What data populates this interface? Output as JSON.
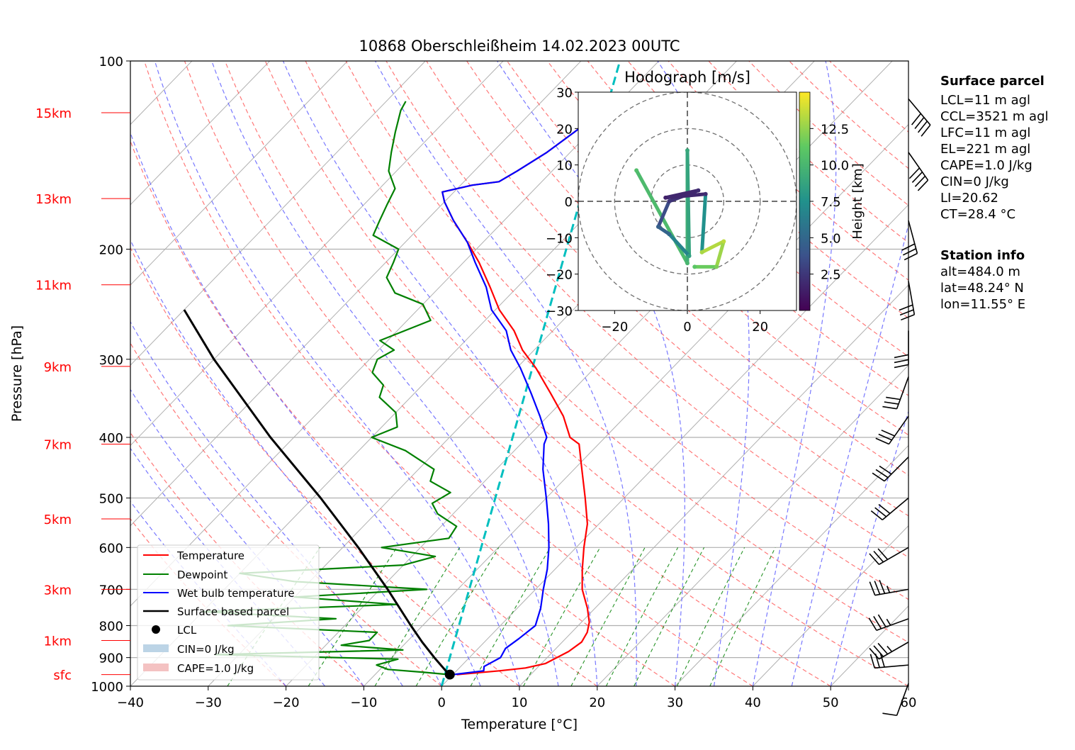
{
  "chart_data": [
    {
      "type": "line",
      "title": "10868 Oberschleißheim 14.02.2023 00UTC",
      "xlabel": "Temperature [°C]",
      "ylabel": "Pressure [hPa]",
      "xlim": [
        -40,
        60
      ],
      "ylim": [
        1000,
        100
      ],
      "y_scale": "log",
      "skew": true,
      "grid": true,
      "x_ticks": [
        "−40",
        "−30",
        "−20",
        "−10",
        "0",
        "10",
        "20",
        "30",
        "40",
        "50",
        "60"
      ],
      "y_ticks": [
        "100",
        "200",
        "300",
        "400",
        "500",
        "600",
        "700",
        "800",
        "900",
        "1000"
      ],
      "height_labels": [
        {
          "label": "sfc",
          "p": 958
        },
        {
          "label": "1km",
          "p": 845
        },
        {
          "label": "3km",
          "p": 700
        },
        {
          "label": "5km",
          "p": 540
        },
        {
          "label": "7km",
          "p": 410
        },
        {
          "label": "9km",
          "p": 308
        },
        {
          "label": "11km",
          "p": 228
        },
        {
          "label": "13km",
          "p": 166
        },
        {
          "label": "15km",
          "p": 121
        }
      ],
      "legend": {
        "placement": "lower-left",
        "entries": [
          {
            "label": "Temperature",
            "color": "#ff0000"
          },
          {
            "label": "Dewpoint",
            "color": "#008000"
          },
          {
            "label": "Wet bulb temperature",
            "color": "#0000ff"
          },
          {
            "label": "Surface based parcel",
            "color": "#000000"
          },
          {
            "label": "LCL",
            "color": "#000000"
          },
          {
            "label": "CIN=0 J/kg",
            "color": "#bcd4e6"
          },
          {
            "label": "CAPE=1.0 J/kg",
            "color": "#f4c2c2"
          }
        ]
      },
      "series": [
        {
          "name": "Temperature",
          "color": "#ff0000",
          "points": [
            {
              "p": 958,
              "t": 0.5
            },
            {
              "p": 945,
              "t": 5.5
            },
            {
              "p": 935,
              "t": 8.5
            },
            {
              "p": 920,
              "t": 10.5
            },
            {
              "p": 880,
              "t": 12.0
            },
            {
              "p": 850,
              "t": 12.5
            },
            {
              "p": 820,
              "t": 12.0
            },
            {
              "p": 790,
              "t": 11.0
            },
            {
              "p": 750,
              "t": 9.0
            },
            {
              "p": 700,
              "t": 6.0
            },
            {
              "p": 650,
              "t": 3.5
            },
            {
              "p": 600,
              "t": 1.0
            },
            {
              "p": 550,
              "t": -1.5
            },
            {
              "p": 500,
              "t": -5.0
            },
            {
              "p": 450,
              "t": -9.0
            },
            {
              "p": 410,
              "t": -12.5
            },
            {
              "p": 400,
              "t": -14.5
            },
            {
              "p": 370,
              "t": -18.0
            },
            {
              "p": 340,
              "t": -22.5
            },
            {
              "p": 310,
              "t": -27.5
            },
            {
              "p": 290,
              "t": -31.5
            },
            {
              "p": 270,
              "t": -35.0
            },
            {
              "p": 250,
              "t": -39.5
            },
            {
              "p": 230,
              "t": -43.5
            },
            {
              "p": 210,
              "t": -48.0
            },
            {
              "p": 195,
              "t": -52.0
            },
            {
              "p": 180,
              "t": -56.5
            },
            {
              "p": 168,
              "t": -60.0
            },
            {
              "p": 162,
              "t": -61.5
            },
            {
              "p": 158,
              "t": -58.5
            },
            {
              "p": 156,
              "t": -55.5
            },
            {
              "p": 150,
              "t": -54.5
            },
            {
              "p": 140,
              "t": -53.0
            },
            {
              "p": 130,
              "t": -52.0
            },
            {
              "p": 120,
              "t": -51.0
            },
            {
              "p": 116,
              "t": -50.5
            }
          ]
        },
        {
          "name": "Dewpoint",
          "color": "#008000",
          "points": [
            {
              "p": 958,
              "t": -0.5
            },
            {
              "p": 950,
              "t": -4.0
            },
            {
              "p": 940,
              "t": -9.0
            },
            {
              "p": 925,
              "t": -11.0
            },
            {
              "p": 905,
              "t": -9.0
            },
            {
              "p": 890,
              "t": -33.0
            },
            {
              "p": 875,
              "t": -9.5
            },
            {
              "p": 860,
              "t": -18.0
            },
            {
              "p": 845,
              "t": -15.0
            },
            {
              "p": 820,
              "t": -15.0
            },
            {
              "p": 800,
              "t": -35.0
            },
            {
              "p": 780,
              "t": -22.0
            },
            {
              "p": 760,
              "t": -40.0
            },
            {
              "p": 740,
              "t": -16.0
            },
            {
              "p": 720,
              "t": -30.0
            },
            {
              "p": 700,
              "t": -14.0
            },
            {
              "p": 680,
              "t": -32.0
            },
            {
              "p": 660,
              "t": -40.0
            },
            {
              "p": 640,
              "t": -20.0
            },
            {
              "p": 620,
              "t": -17.0
            },
            {
              "p": 600,
              "t": -25.0
            },
            {
              "p": 580,
              "t": -17.5
            },
            {
              "p": 555,
              "t": -18.0
            },
            {
              "p": 530,
              "t": -22.0
            },
            {
              "p": 510,
              "t": -24.0
            },
            {
              "p": 490,
              "t": -23.0
            },
            {
              "p": 470,
              "t": -27.0
            },
            {
              "p": 450,
              "t": -28.0
            },
            {
              "p": 420,
              "t": -34.0
            },
            {
              "p": 400,
              "t": -40.0
            },
            {
              "p": 385,
              "t": -38.0
            },
            {
              "p": 365,
              "t": -40.0
            },
            {
              "p": 345,
              "t": -44.0
            },
            {
              "p": 330,
              "t": -45.0
            },
            {
              "p": 315,
              "t": -48.0
            },
            {
              "p": 300,
              "t": -49.0
            },
            {
              "p": 290,
              "t": -48.0
            },
            {
              "p": 280,
              "t": -51.0
            },
            {
              "p": 260,
              "t": -47.0
            },
            {
              "p": 245,
              "t": -50.0
            },
            {
              "p": 235,
              "t": -55.0
            },
            {
              "p": 222,
              "t": -58.0
            },
            {
              "p": 210,
              "t": -59.0
            },
            {
              "p": 200,
              "t": -60.0
            },
            {
              "p": 190,
              "t": -65.0
            },
            {
              "p": 180,
              "t": -66.0
            },
            {
              "p": 170,
              "t": -67.0
            },
            {
              "p": 160,
              "t": -68.0
            },
            {
              "p": 150,
              "t": -71.0
            },
            {
              "p": 140,
              "t": -73.0
            },
            {
              "p": 130,
              "t": -75.0
            },
            {
              "p": 120,
              "t": -77.0
            },
            {
              "p": 116,
              "t": -77.5
            }
          ]
        },
        {
          "name": "Wet bulb temperature",
          "color": "#0000ff",
          "points": [
            {
              "p": 958,
              "t": 0.0
            },
            {
              "p": 945,
              "t": 3.5
            },
            {
              "p": 930,
              "t": 3.0
            },
            {
              "p": 900,
              "t": 4.0
            },
            {
              "p": 870,
              "t": 3.5
            },
            {
              "p": 840,
              "t": 4.0
            },
            {
              "p": 800,
              "t": 4.5
            },
            {
              "p": 750,
              "t": 3.0
            },
            {
              "p": 700,
              "t": 1.0
            },
            {
              "p": 650,
              "t": -1.0
            },
            {
              "p": 600,
              "t": -3.5
            },
            {
              "p": 550,
              "t": -6.5
            },
            {
              "p": 500,
              "t": -10.0
            },
            {
              "p": 450,
              "t": -14.0
            },
            {
              "p": 410,
              "t": -17.0
            },
            {
              "p": 400,
              "t": -17.5
            },
            {
              "p": 370,
              "t": -21.0
            },
            {
              "p": 340,
              "t": -25.0
            },
            {
              "p": 310,
              "t": -29.5
            },
            {
              "p": 290,
              "t": -33.0
            },
            {
              "p": 270,
              "t": -36.0
            },
            {
              "p": 250,
              "t": -40.5
            },
            {
              "p": 230,
              "t": -44.0
            },
            {
              "p": 210,
              "t": -48.5
            },
            {
              "p": 195,
              "t": -52.0
            },
            {
              "p": 180,
              "t": -56.5
            },
            {
              "p": 168,
              "t": -60.0
            },
            {
              "p": 162,
              "t": -61.5
            },
            {
              "p": 158,
              "t": -58.5
            },
            {
              "p": 156,
              "t": -55.5
            },
            {
              "p": 150,
              "t": -54.5
            },
            {
              "p": 140,
              "t": -53.0
            },
            {
              "p": 130,
              "t": -52.0
            },
            {
              "p": 120,
              "t": -51.0
            },
            {
              "p": 116,
              "t": -50.5
            }
          ]
        },
        {
          "name": "Surface based parcel",
          "color": "#000000",
          "points": [
            {
              "p": 958,
              "t": -0.5
            },
            {
              "p": 900,
              "t": -4.5
            },
            {
              "p": 850,
              "t": -8.0
            },
            {
              "p": 800,
              "t": -11.5
            },
            {
              "p": 700,
              "t": -19.0
            },
            {
              "p": 600,
              "t": -28.0
            },
            {
              "p": 500,
              "t": -39.0
            },
            {
              "p": 400,
              "t": -53.0
            },
            {
              "p": 300,
              "t": -70.0
            },
            {
              "p": 250,
              "t": -80.0
            }
          ]
        }
      ],
      "lcl": {
        "p": 958,
        "t": -0.4
      },
      "cyan_line": {
        "label": "",
        "color": "#00bfbf",
        "points": [
          {
            "p": 1000,
            "t": 0.0
          },
          {
            "p": 100,
            "t": -55.0
          }
        ]
      },
      "wind_barbs": [
        {
          "p": 990,
          "dir": 200,
          "speed_kt": 10
        },
        {
          "p": 925,
          "dir": 265,
          "speed_kt": 30
        },
        {
          "p": 850,
          "dir": 240,
          "speed_kt": 35
        },
        {
          "p": 780,
          "dir": 250,
          "speed_kt": 35
        },
        {
          "p": 700,
          "dir": 260,
          "speed_kt": 35
        },
        {
          "p": 600,
          "dir": 240,
          "speed_kt": 30
        },
        {
          "p": 500,
          "dir": 230,
          "speed_kt": 30
        },
        {
          "p": 430,
          "dir": 225,
          "speed_kt": 30
        },
        {
          "p": 370,
          "dir": 215,
          "speed_kt": 30
        },
        {
          "p": 320,
          "dir": 200,
          "speed_kt": 30
        },
        {
          "p": 270,
          "dir": 180,
          "speed_kt": 30
        },
        {
          "p": 225,
          "dir": 170,
          "speed_kt": 30
        },
        {
          "p": 180,
          "dir": 165,
          "speed_kt": 30
        },
        {
          "p": 140,
          "dir": 145,
          "speed_kt": 40
        },
        {
          "p": 115,
          "dir": 140,
          "speed_kt": 40
        }
      ]
    },
    {
      "type": "scatter",
      "title": "Hodograph [m/s]",
      "xlim": [
        -30,
        30
      ],
      "ylim": [
        -30,
        30
      ],
      "x_ticks": [
        "−20",
        "0",
        "20"
      ],
      "y_ticks": [
        "30",
        "20",
        "10",
        "0",
        "−10",
        "−20",
        "−30"
      ],
      "rings": [
        10,
        20,
        30
      ],
      "colorbar": {
        "label": "Height [km]",
        "ticks": [
          "2.5",
          "5.0",
          "7.5",
          "10.0",
          "12.5"
        ],
        "range": [
          0,
          15
        ],
        "colormap": "viridis"
      },
      "points": [
        {
          "u": -14,
          "v": 8.5,
          "h": 10.5
        },
        {
          "u": 0,
          "v": -17,
          "h": 10.0
        },
        {
          "u": 0,
          "v": 14,
          "h": 9.0
        },
        {
          "u": 0.5,
          "v": -15,
          "h": 8.5
        },
        {
          "u": -5,
          "v": -9,
          "h": 5.0
        },
        {
          "u": -8,
          "v": -7,
          "h": 4.5
        },
        {
          "u": -5,
          "v": 0,
          "h": 2.5
        },
        {
          "u": 3,
          "v": 3,
          "h": 2.0
        },
        {
          "u": -6,
          "v": 1,
          "h": 1.5
        },
        {
          "u": 5,
          "v": 2,
          "h": 2.0
        },
        {
          "u": 4,
          "v": -14,
          "h": 13.0
        },
        {
          "u": 10,
          "v": -11,
          "h": 13.5
        },
        {
          "u": 8,
          "v": -18,
          "h": 12.0
        },
        {
          "u": 2,
          "v": -18,
          "h": 11.0
        }
      ]
    }
  ],
  "surface_parcel": {
    "heading": "Surface parcel",
    "lines": [
      "LCL=11 m agl",
      "CCL=3521 m agl",
      "LFC=11 m agl",
      "EL=221 m agl",
      "CAPE=1.0 J/kg",
      "CIN=0 J/kg",
      "LI=20.62",
      "CT=28.4 °C"
    ]
  },
  "station_info": {
    "heading": "Station info",
    "lines": [
      "alt=484.0 m",
      "lat=48.24° N",
      "lon=11.55° E"
    ]
  }
}
